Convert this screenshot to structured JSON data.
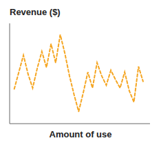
{
  "chart_data": {
    "type": "line",
    "title": "Revenue ($)",
    "xlabel": "Amount of use",
    "x": [
      0,
      1,
      2,
      3,
      4,
      5,
      6,
      7,
      8,
      9,
      10,
      11,
      12,
      13,
      14,
      15,
      16,
      17,
      18,
      19,
      20,
      21,
      22,
      23,
      24,
      25,
      26,
      27,
      28
    ],
    "values": [
      0.32,
      0.5,
      0.68,
      0.48,
      0.33,
      0.54,
      0.72,
      0.55,
      0.8,
      0.6,
      0.9,
      0.7,
      0.46,
      0.26,
      0.08,
      0.28,
      0.5,
      0.33,
      0.6,
      0.46,
      0.36,
      0.52,
      0.42,
      0.33,
      0.5,
      0.3,
      0.18,
      0.56,
      0.4
    ],
    "color": "#F5A623",
    "line_style": "dashed",
    "xlim": [
      -1,
      29.5
    ],
    "ylim": [
      -0.05,
      1.02
    ],
    "tick_labels": false,
    "grid": false
  }
}
